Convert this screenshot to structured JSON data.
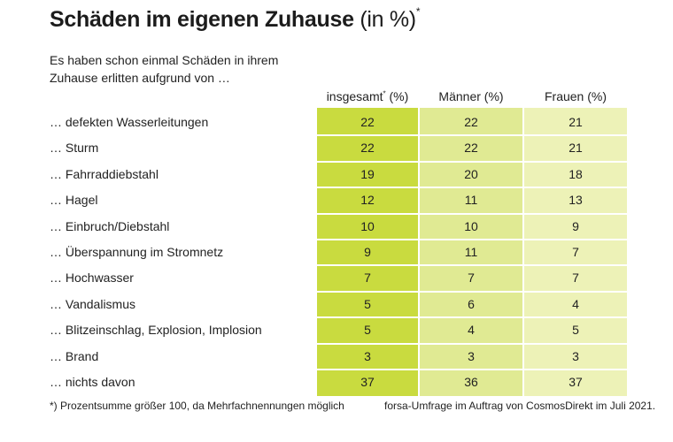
{
  "title": {
    "main": "Schäden im eigenen Zuhause",
    "unit": "(in %)",
    "marker": "*"
  },
  "subtitle": "Es haben schon einmal Schäden in ihrem Zuhause erlitten aufgrund von …",
  "columns": {
    "total": {
      "label": "insgesamt",
      "marker": "*",
      "unit": " (%)"
    },
    "men": "Männer (%)",
    "women": "Frauen (%)"
  },
  "colors": {
    "total_col": "#c9db3f",
    "men_col": "#e0ea93",
    "women_col": "#edf2b7",
    "separator": "#ffffff"
  },
  "chart_data": {
    "type": "table",
    "title": "Schäden im eigenen Zuhause (in %)",
    "categories": [
      "… defekten Wasserleitungen",
      "… Sturm",
      "… Fahrraddiebstahl",
      "… Hagel",
      "… Einbruch/Diebstahl",
      "… Überspannung im Stromnetz",
      "… Hochwasser",
      "… Vandalismus",
      "… Blitzeinschlag, Explosion, Implosion",
      "… Brand",
      "… nichts davon"
    ],
    "series": [
      {
        "name": "insgesamt* (%)",
        "values": [
          22,
          22,
          19,
          12,
          10,
          9,
          7,
          5,
          5,
          3,
          37
        ]
      },
      {
        "name": "Männer (%)",
        "values": [
          22,
          22,
          20,
          11,
          10,
          11,
          7,
          6,
          4,
          3,
          36
        ]
      },
      {
        "name": "Frauen (%)",
        "values": [
          21,
          21,
          18,
          13,
          9,
          7,
          7,
          4,
          5,
          3,
          37
        ]
      }
    ]
  },
  "footnotes": {
    "left": "*) Prozentsumme größer 100, da Mehrfachnennungen möglich",
    "right": "forsa-Umfrage im Auftrag von CosmosDirekt im Juli 2021."
  }
}
